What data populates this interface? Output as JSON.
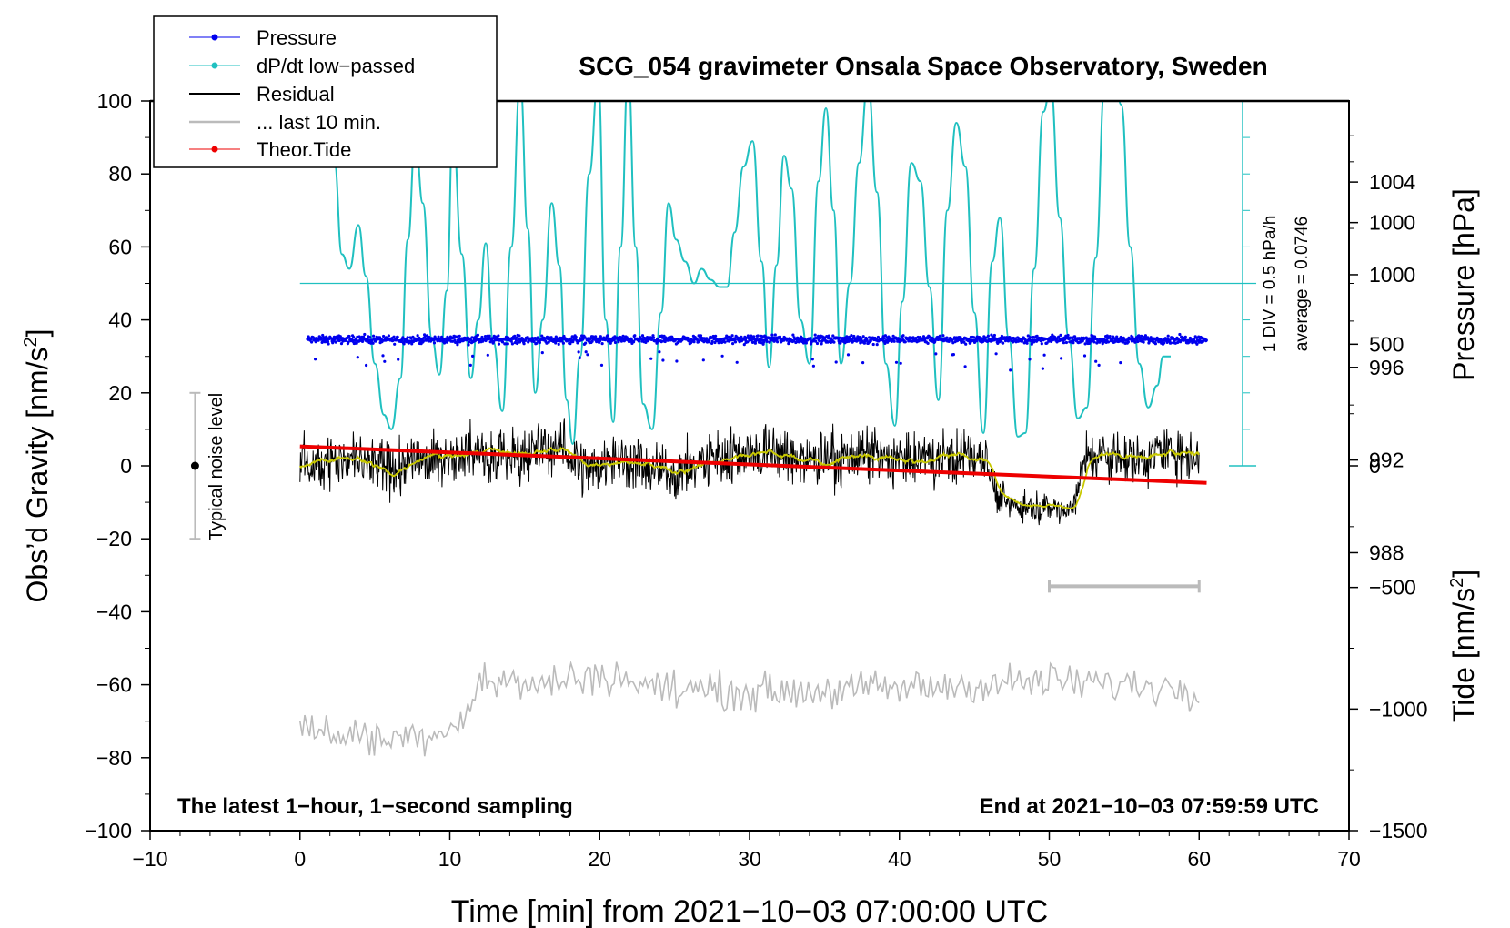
{
  "chart_data": {
    "type": "line",
    "title": "SCG_054 gravimeter Onsala Space Observatory, Sweden",
    "xlabel": "Time [min] from 2021−10−03 07:00:00 UTC",
    "ylabel": "Obs’d Gravity [nm/s",
    "ylabel_sup": "2",
    "ylabel_end": "]",
    "xlim": [
      -10,
      70
    ],
    "ylim": [
      -100,
      100
    ],
    "x_ticks": [
      -10,
      0,
      10,
      20,
      30,
      40,
      50,
      60,
      70
    ],
    "x_tick_labels": [
      "−10",
      "0",
      "10",
      "20",
      "30",
      "40",
      "50",
      "60",
      "70"
    ],
    "y_ticks": [
      -100,
      -80,
      -60,
      -40,
      -20,
      0,
      20,
      40,
      60,
      80,
      100
    ],
    "y_tick_labels": [
      "−100",
      "−80",
      "−60",
      "−40",
      "−20",
      "0",
      "20",
      "40",
      "60",
      "80",
      "100"
    ],
    "pressure_axis": {
      "label": "Pressure [hPa]",
      "ticks": [
        988,
        992,
        996,
        1000,
        1004
      ],
      "range": [
        976,
        1007.5
      ]
    },
    "tide_axis": {
      "label": "Tide [nm/s",
      "label_sup": "2",
      "label_end": "]",
      "ticks": [
        1000,
        500,
        0,
        -500,
        -1000,
        -1500
      ],
      "tick_labels": [
        "1000",
        "500",
        "0",
        "−500",
        "−1000",
        "−1500"
      ],
      "range": [
        -1500,
        1500
      ]
    },
    "legend": {
      "placement": "top-left",
      "entries": [
        {
          "label": "Pressure",
          "color": "#0000ee",
          "marker": "dot"
        },
        {
          "label": "dP/dt low−passed",
          "color": "#20c0c0",
          "marker": "dot"
        },
        {
          "label": "Residual",
          "color": "#000000",
          "marker": "none"
        },
        {
          "label": "... last 10 min.",
          "color": "#bbbbbb",
          "marker": "none"
        },
        {
          "label": "Theor.Tide",
          "color": "#ee0000",
          "marker": "dot"
        }
      ]
    },
    "annotations": {
      "noise_label": "Typical noise level",
      "div_label": "1 DIV = 0.5 hPa/h",
      "average_label": "average = 0.0746",
      "left_note": "The latest 1−hour, 1−second sampling",
      "right_note": "End at 2021−10−03 07:59:59 UTC"
    },
    "noise_bar": {
      "x": -7,
      "y_low": -20,
      "y_high": 20,
      "center": 0
    },
    "last10_bar": {
      "x_start": 50,
      "x_end": 60,
      "y": -33
    },
    "dpdt_baseline": 50,
    "dpdt_zero_scale_y": [
      0,
      100
    ],
    "dpdt_scale_x": 62.9,
    "series": [
      {
        "name": "dP/dt low-passed",
        "color": "#20c0c0",
        "x": [
          2.3,
          2.8,
          3.3,
          3.9,
          4.4,
          5.0,
          5.6,
          6.1,
          6.7,
          7.2,
          7.7,
          8.2,
          8.8,
          9.3,
          9.8,
          10.2,
          10.8,
          11.4,
          11.9,
          12.4,
          12.9,
          13.5,
          14.1,
          14.7,
          15.2,
          15.7,
          16.2,
          16.8,
          17.3,
          17.8,
          18.2,
          18.7,
          19.3,
          19.9,
          20.4,
          20.9,
          21.4,
          21.9,
          22.4,
          22.9,
          23.5,
          24.1,
          24.6,
          25.1,
          25.7,
          26.3,
          26.8,
          27.4,
          28.0,
          28.5,
          29.0,
          29.6,
          30.2,
          30.8,
          31.3,
          31.8,
          32.3,
          32.8,
          33.4,
          34.0,
          34.6,
          35.1,
          35.6,
          36.1,
          36.7,
          37.3,
          37.9,
          38.5,
          39.1,
          39.7,
          40.2,
          40.8,
          41.4,
          42.0,
          42.6,
          43.2,
          43.8,
          44.4,
          45.0,
          45.6,
          46.2,
          46.7,
          47.3,
          47.9,
          48.4,
          49.0,
          49.6,
          50.1,
          50.7,
          51.3,
          51.9,
          52.5,
          53.1,
          53.7,
          54.2,
          54.8,
          55.4,
          56.0,
          56.6,
          57.2,
          57.6,
          58.1
        ],
        "values": [
          83,
          58,
          54,
          66,
          52,
          28,
          14,
          10,
          24,
          62,
          90,
          72,
          35,
          25,
          48,
          92,
          58,
          24,
          40,
          61,
          34,
          15,
          60,
          105,
          65,
          20,
          40,
          72,
          55,
          18,
          6,
          30,
          80,
          106,
          40,
          12,
          60,
          108,
          60,
          17,
          10,
          42,
          72,
          62,
          56,
          50,
          54,
          51,
          49,
          49,
          64,
          82,
          89,
          56,
          27,
          55,
          85,
          76,
          40,
          28,
          78,
          98,
          70,
          28,
          50,
          83,
          105,
          75,
          28,
          11,
          45,
          83,
          78,
          49,
          18,
          70,
          94,
          82,
          42,
          9,
          56,
          68,
          35,
          8,
          9,
          54,
          97,
          104,
          68,
          35,
          13,
          16,
          57,
          104,
          118,
          99,
          60,
          28,
          16,
          22,
          30,
          30
        ]
      },
      {
        "name": "Pressure",
        "color": "#0000ee",
        "x_start": 0.5,
        "x_end": 60.5,
        "mean_hpa": 997.2,
        "noise_hpa": 0.25
      },
      {
        "name": "Residual",
        "color": "#000000",
        "x": [
          0,
          2,
          4,
          6,
          8,
          10,
          12,
          14,
          16,
          17.5,
          19,
          21,
          23,
          25,
          27,
          29,
          31,
          33,
          35,
          37,
          39,
          41,
          43,
          45,
          45.8,
          46.5,
          48,
          50,
          51.5,
          52.5,
          54,
          56,
          58,
          60
        ],
        "values": [
          0,
          2,
          1,
          -2,
          2,
          3,
          4,
          3,
          4,
          5,
          -1,
          2,
          0,
          -2,
          1,
          3,
          4,
          2,
          1,
          3,
          2,
          1,
          3,
          2,
          2,
          -9,
          -11,
          -11,
          -12,
          3,
          3,
          2,
          4,
          3
        ],
        "noise_amplitude": 8
      },
      {
        "name": "Residual smoothed",
        "color": "#c8c800"
      },
      {
        "name": "... last 10 min.",
        "color": "#bbbbbb",
        "x": [
          0,
          6,
          10,
          11,
          12,
          16,
          20,
          24,
          30,
          40,
          50,
          55,
          60
        ],
        "values": [
          -72,
          -75,
          -72,
          -68,
          -59,
          -60,
          -57,
          -61,
          -62,
          -61,
          -59,
          -60,
          -61
        ],
        "noise_amplitude": 5
      },
      {
        "name": "Theor.Tide",
        "color": "#ee0000",
        "x": [
          0,
          60.5
        ],
        "values_nms2": [
          80,
          -70
        ]
      }
    ]
  }
}
